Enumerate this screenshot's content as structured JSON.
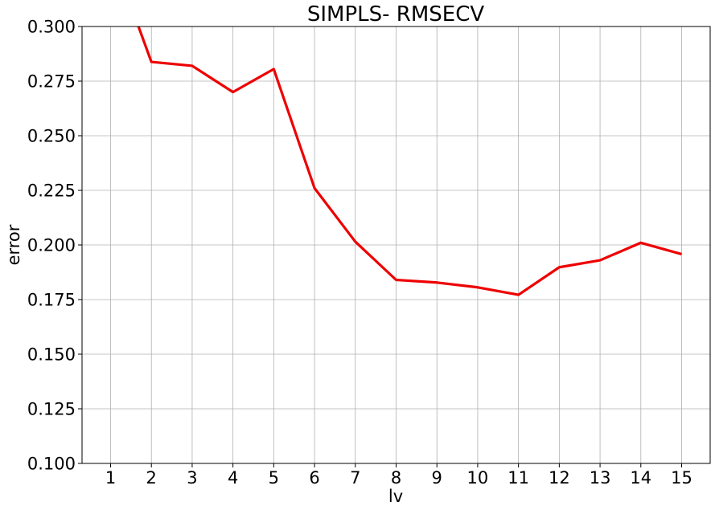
{
  "chart_data": {
    "type": "line",
    "title": "SIMPLS- RMSECV",
    "xlabel": "lv",
    "ylabel": "error",
    "x": [
      1,
      2,
      3,
      4,
      5,
      6,
      7,
      8,
      9,
      10,
      11,
      12,
      13,
      14,
      15
    ],
    "x_tick_labels": [
      "1",
      "2",
      "3",
      "4",
      "5",
      "6",
      "7",
      "8",
      "9",
      "10",
      "11",
      "12",
      "13",
      "14",
      "15"
    ],
    "xlim": [
      0.3,
      15.7
    ],
    "ylim": [
      0.1,
      0.3
    ],
    "y_ticks": [
      0.1,
      0.125,
      0.15,
      0.175,
      0.2,
      0.225,
      0.25,
      0.275,
      0.3
    ],
    "y_tick_labels": [
      "0.100",
      "0.125",
      "0.150",
      "0.175",
      "0.200",
      "0.225",
      "0.250",
      "0.275",
      "0.300"
    ],
    "grid": true,
    "series": [
      {
        "color": "#ee0000",
        "values": [
          0.335,
          0.2838,
          0.282,
          0.27,
          0.2805,
          0.226,
          0.2015,
          0.184,
          0.1828,
          0.1806,
          0.1772,
          0.1898,
          0.193,
          0.201,
          0.1958
        ]
      }
    ]
  }
}
